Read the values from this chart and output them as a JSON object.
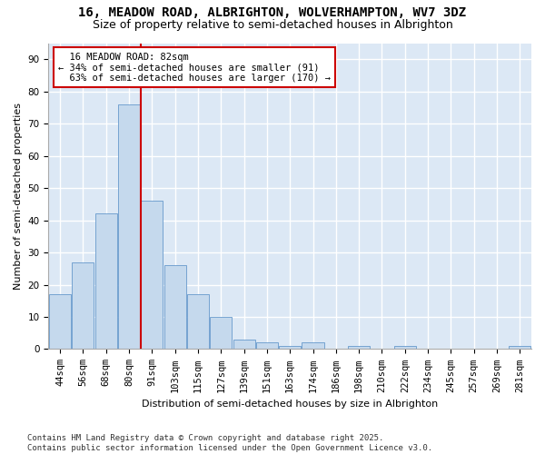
{
  "title1": "16, MEADOW ROAD, ALBRIGHTON, WOLVERHAMPTON, WV7 3DZ",
  "title2": "Size of property relative to semi-detached houses in Albrighton",
  "xlabel": "Distribution of semi-detached houses by size in Albrighton",
  "ylabel": "Number of semi-detached properties",
  "bar_labels": [
    "44sqm",
    "56sqm",
    "68sqm",
    "80sqm",
    "91sqm",
    "103sqm",
    "115sqm",
    "127sqm",
    "139sqm",
    "151sqm",
    "163sqm",
    "174sqm",
    "186sqm",
    "198sqm",
    "210sqm",
    "222sqm",
    "234sqm",
    "245sqm",
    "257sqm",
    "269sqm",
    "281sqm"
  ],
  "bar_values": [
    17,
    27,
    42,
    76,
    46,
    26,
    17,
    10,
    3,
    2,
    1,
    2,
    0,
    1,
    0,
    1,
    0,
    0,
    0,
    0,
    1
  ],
  "bar_color": "#c5d9ed",
  "bar_edge_color": "#6699cc",
  "background_color": "#dce8f5",
  "grid_color": "#ffffff",
  "fig_background": "#ffffff",
  "property_bin_index": 3,
  "property_label": "16 MEADOW ROAD: 82sqm",
  "smaller_pct": 34,
  "smaller_count": 91,
  "larger_pct": 63,
  "larger_count": 170,
  "vline_color": "#cc0000",
  "annotation_box_edge_color": "#cc0000",
  "ylim": [
    0,
    95
  ],
  "yticks": [
    0,
    10,
    20,
    30,
    40,
    50,
    60,
    70,
    80,
    90
  ],
  "footer": "Contains HM Land Registry data © Crown copyright and database right 2025.\nContains public sector information licensed under the Open Government Licence v3.0.",
  "title_fontsize": 10,
  "subtitle_fontsize": 9,
  "axis_label_fontsize": 8,
  "tick_fontsize": 7.5,
  "annotation_fontsize": 7.5,
  "footer_fontsize": 6.5
}
